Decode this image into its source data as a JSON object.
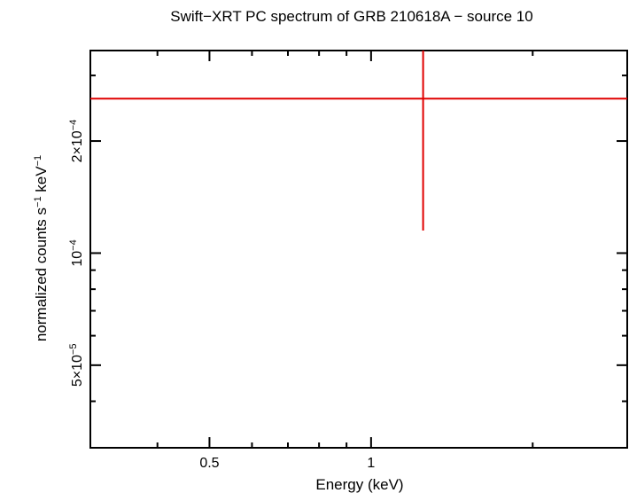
{
  "chart_data": {
    "type": "scatter",
    "title": "Swift−XRT PC spectrum of GRB 210618A − source 10",
    "xlabel": "Energy (keV)",
    "ylabel": {
      "base": "normalized counts s",
      "sup1": "−1",
      "mid": " keV",
      "sup2": "−1"
    },
    "x_scale": "log",
    "y_scale": "log",
    "xlim": [
      0.3,
      3.0
    ],
    "ylim": [
      3e-05,
      0.00035
    ],
    "x_ticks": [
      {
        "value": 0.5,
        "label": "0.5"
      },
      {
        "value": 1,
        "label": "1"
      }
    ],
    "y_ticks": [
      {
        "value": 5e-05,
        "mantissa": "5×10",
        "exp": "−5"
      },
      {
        "value": 0.0001,
        "mantissa": "10",
        "exp": "−4"
      },
      {
        "value": 0.0002,
        "mantissa": "2×10",
        "exp": "−4"
      }
    ],
    "grid": false,
    "series": [
      {
        "color": "#e00000",
        "points": [
          {
            "x": 1.25,
            "xerr": [
              0.3,
              3.0
            ],
            "y": 0.00026,
            "yerr": [
              0.000115,
              0.00035
            ]
          }
        ]
      }
    ]
  }
}
